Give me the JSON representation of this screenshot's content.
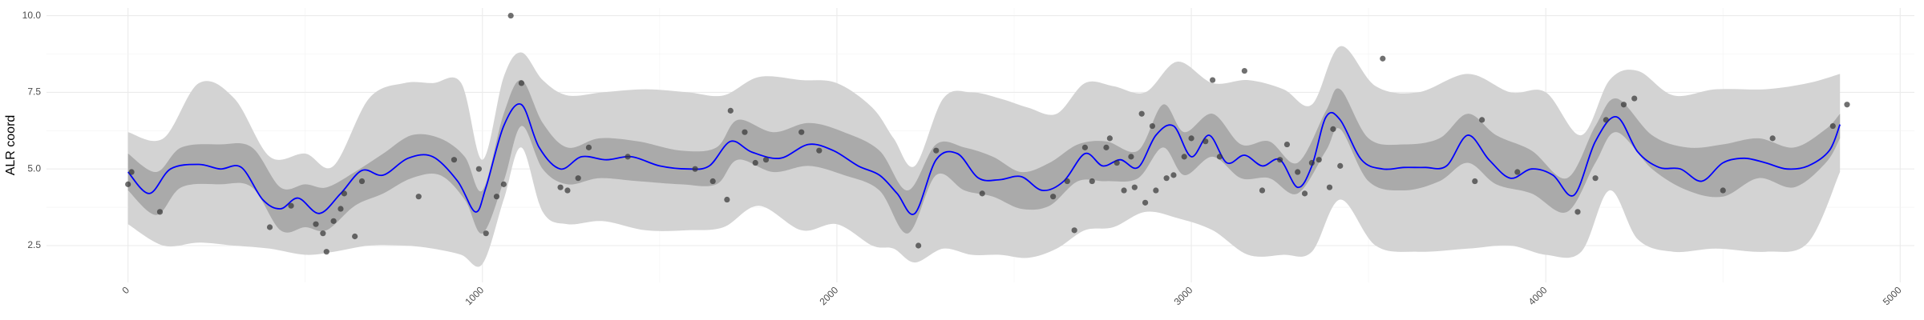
{
  "chart_data": {
    "type": "line",
    "title": "",
    "xlabel": "",
    "ylabel": "ALR coord",
    "xlim": [
      -230,
      5040
    ],
    "ylim": [
      1.3,
      10.25
    ],
    "x_ticks": [
      0,
      1000,
      2000,
      3000,
      4000,
      5000
    ],
    "x_tick_labels": [
      "0",
      "1000",
      "2000",
      "3000",
      "4000",
      "5000"
    ],
    "y_ticks": [
      2.5,
      5.0,
      7.5,
      10.0
    ],
    "y_tick_labels": [
      "2.5",
      "5.0",
      "7.5",
      "10.0"
    ],
    "grid": true,
    "colors": {
      "line": "#0000ff",
      "inner_band": "#aaaaaa",
      "outer_band": "#d3d3d3",
      "points": "#333333"
    },
    "fit_line": {
      "x": [
        0,
        60,
        120,
        200,
        260,
        320,
        380,
        430,
        480,
        540,
        600,
        660,
        720,
        790,
        860,
        930,
        980,
        1010,
        1060,
        1110,
        1160,
        1220,
        1280,
        1350,
        1420,
        1500,
        1580,
        1640,
        1700,
        1760,
        1840,
        1920,
        1990,
        2060,
        2120,
        2170,
        2220,
        2280,
        2340,
        2400,
        2460,
        2520,
        2580,
        2640,
        2700,
        2750,
        2800,
        2850,
        2900,
        2950,
        3000,
        3050,
        3100,
        3150,
        3200,
        3250,
        3300,
        3340,
        3380,
        3420,
        3480,
        3540,
        3600,
        3660,
        3720,
        3780,
        3840,
        3900,
        3960,
        4020,
        4080,
        4140,
        4200,
        4260,
        4320,
        4380,
        4440,
        4500,
        4560,
        4620,
        4680,
        4740,
        4800,
        4830
      ],
      "y": [
        4.9,
        4.2,
        5.0,
        5.15,
        5.0,
        5.05,
        4.0,
        3.7,
        4.05,
        3.55,
        4.2,
        4.95,
        4.8,
        5.35,
        5.4,
        4.6,
        3.6,
        4.4,
        6.4,
        7.1,
        5.7,
        5.0,
        5.4,
        5.3,
        5.4,
        5.1,
        5.0,
        5.1,
        5.9,
        5.55,
        5.35,
        5.8,
        5.6,
        5.1,
        4.8,
        4.2,
        3.55,
        5.3,
        5.5,
        4.7,
        4.65,
        4.75,
        4.3,
        4.6,
        5.5,
        5.1,
        5.3,
        5.05,
        6.1,
        6.4,
        5.4,
        6.1,
        5.2,
        5.45,
        5.1,
        5.3,
        4.4,
        5.1,
        6.7,
        6.6,
        5.3,
        5.0,
        5.05,
        5.05,
        5.1,
        6.1,
        5.3,
        4.7,
        5.0,
        4.8,
        4.15,
        5.9,
        6.7,
        5.55,
        5.05,
        5.0,
        4.6,
        5.2,
        5.35,
        5.2,
        5.0,
        5.1,
        5.6,
        6.45
      ]
    },
    "inner_band": {
      "x": [
        0,
        80,
        150,
        260,
        350,
        430,
        500,
        560,
        640,
        720,
        800,
        880,
        950,
        1000,
        1060,
        1110,
        1170,
        1240,
        1330,
        1440,
        1560,
        1660,
        1720,
        1820,
        1920,
        2020,
        2120,
        2200,
        2280,
        2360,
        2440,
        2520,
        2600,
        2680,
        2760,
        2850,
        2920,
        2980,
        3060,
        3140,
        3220,
        3300,
        3380,
        3420,
        3500,
        3600,
        3700,
        3780,
        3860,
        3960,
        4060,
        4140,
        4200,
        4300,
        4400,
        4500,
        4600,
        4700,
        4790,
        4830
      ],
      "lower": [
        4.3,
        3.5,
        4.4,
        4.5,
        4.4,
        3.0,
        3.1,
        3.0,
        3.8,
        4.2,
        4.7,
        4.8,
        4.0,
        2.9,
        4.6,
        6.4,
        5.0,
        4.5,
        4.7,
        4.6,
        4.5,
        4.5,
        5.3,
        4.9,
        5.1,
        4.8,
        4.3,
        2.9,
        4.8,
        4.3,
        4.1,
        3.7,
        3.8,
        4.6,
        4.6,
        4.7,
        5.7,
        4.8,
        5.4,
        4.7,
        4.7,
        4.2,
        5.6,
        6.3,
        4.6,
        4.3,
        4.6,
        5.2,
        4.5,
        4.2,
        3.6,
        5.2,
        6.2,
        5.0,
        4.3,
        4.1,
        4.7,
        4.4,
        5.2,
        6.0
      ],
      "upper": [
        5.5,
        4.9,
        5.7,
        5.8,
        5.7,
        4.4,
        4.5,
        4.4,
        4.9,
        5.5,
        6.1,
        6.0,
        5.4,
        4.3,
        6.8,
        7.9,
        6.5,
        5.7,
        6.0,
        5.9,
        5.6,
        5.7,
        6.6,
        6.2,
        6.5,
        6.2,
        5.6,
        4.3,
        5.8,
        5.7,
        5.4,
        4.9,
        5.2,
        5.8,
        5.9,
        5.6,
        7.1,
        6.2,
        6.8,
        5.8,
        5.9,
        5.2,
        6.9,
        7.6,
        6.0,
        5.8,
        6.0,
        6.8,
        6.1,
        5.6,
        4.7,
        6.4,
        7.3,
        6.1,
        5.7,
        5.8,
        6.0,
        5.7,
        6.3,
        6.8
      ]
    },
    "outer_band": {
      "x": [
        0,
        100,
        200,
        300,
        400,
        500,
        580,
        680,
        780,
        860,
        940,
        1000,
        1060,
        1110,
        1170,
        1240,
        1340,
        1460,
        1580,
        1680,
        1780,
        1900,
        2000,
        2100,
        2160,
        2220,
        2300,
        2380,
        2460,
        2540,
        2620,
        2700,
        2780,
        2870,
        2960,
        3060,
        3160,
        3260,
        3340,
        3420,
        3520,
        3640,
        3780,
        3900,
        4000,
        4100,
        4180,
        4260,
        4360,
        4480,
        4620,
        4740,
        4830
      ],
      "lower": [
        3.2,
        2.5,
        2.6,
        2.5,
        2.4,
        2.2,
        2.3,
        2.5,
        2.5,
        2.4,
        2.2,
        1.9,
        4.0,
        5.7,
        3.6,
        3.2,
        3.3,
        3.0,
        3.0,
        3.1,
        3.8,
        3.0,
        3.2,
        2.5,
        2.4,
        1.95,
        2.4,
        2.2,
        2.2,
        2.1,
        2.4,
        3.0,
        3.1,
        3.6,
        3.4,
        3.0,
        2.2,
        2.2,
        2.3,
        4.0,
        2.5,
        2.3,
        2.4,
        2.5,
        2.2,
        2.3,
        4.3,
        2.7,
        2.3,
        2.4,
        2.3,
        2.6,
        4.9
      ],
      "upper": [
        6.2,
        6.0,
        7.8,
        7.3,
        5.4,
        5.5,
        5.1,
        7.3,
        7.8,
        7.8,
        7.8,
        5.3,
        8.0,
        8.8,
        7.9,
        7.4,
        7.5,
        7.6,
        7.5,
        7.4,
        8.0,
        7.9,
        7.8,
        7.0,
        6.0,
        5.1,
        7.3,
        7.5,
        7.3,
        7.0,
        6.8,
        7.8,
        7.7,
        7.5,
        8.5,
        7.8,
        7.9,
        7.6,
        7.1,
        9.0,
        7.7,
        7.5,
        8.1,
        7.5,
        7.5,
        6.1,
        7.9,
        8.2,
        7.4,
        7.6,
        7.6,
        7.8,
        8.1
      ]
    },
    "points": {
      "x": [
        0,
        10,
        90,
        400,
        460,
        530,
        550,
        560,
        580,
        600,
        610,
        640,
        660,
        820,
        920,
        990,
        1010,
        1040,
        1060,
        1080,
        1110,
        1220,
        1240,
        1270,
        1300,
        1410,
        1600,
        1650,
        1690,
        1700,
        1740,
        1770,
        1800,
        1900,
        1950,
        2230,
        2280,
        2410,
        2610,
        2650,
        2670,
        2700,
        2720,
        2760,
        2770,
        2790,
        2810,
        2830,
        2840,
        2860,
        2870,
        2890,
        2900,
        2930,
        2950,
        2980,
        3000,
        3040,
        3060,
        3080,
        3150,
        3200,
        3250,
        3270,
        3300,
        3320,
        3340,
        3360,
        3390,
        3400,
        3420,
        3540,
        3800,
        3820,
        3920,
        4090,
        4140,
        4170,
        4220,
        4250,
        4500,
        4640,
        4810,
        4850
      ],
      "y": [
        4.5,
        4.9,
        3.6,
        3.1,
        3.8,
        3.2,
        2.9,
        2.3,
        3.3,
        3.7,
        4.2,
        2.8,
        4.6,
        4.1,
        5.3,
        5.0,
        2.9,
        4.1,
        4.5,
        10.0,
        7.8,
        4.4,
        4.3,
        4.7,
        5.7,
        5.4,
        5.0,
        4.6,
        4.0,
        6.9,
        6.2,
        5.2,
        5.3,
        6.2,
        5.6,
        2.5,
        5.6,
        4.2,
        4.1,
        4.6,
        3.0,
        5.7,
        4.6,
        5.7,
        6.0,
        5.2,
        4.3,
        5.4,
        4.4,
        6.8,
        3.9,
        6.4,
        4.3,
        4.7,
        4.8,
        5.4,
        6.0,
        5.9,
        7.9,
        5.4,
        8.2,
        4.3,
        5.3,
        5.8,
        4.9,
        4.2,
        5.2,
        5.3,
        4.4,
        6.3,
        5.1,
        8.6,
        4.6,
        6.6,
        4.9,
        3.6,
        4.7,
        6.6,
        7.1,
        7.3,
        4.3,
        6.0,
        6.4,
        7.1
      ]
    }
  }
}
